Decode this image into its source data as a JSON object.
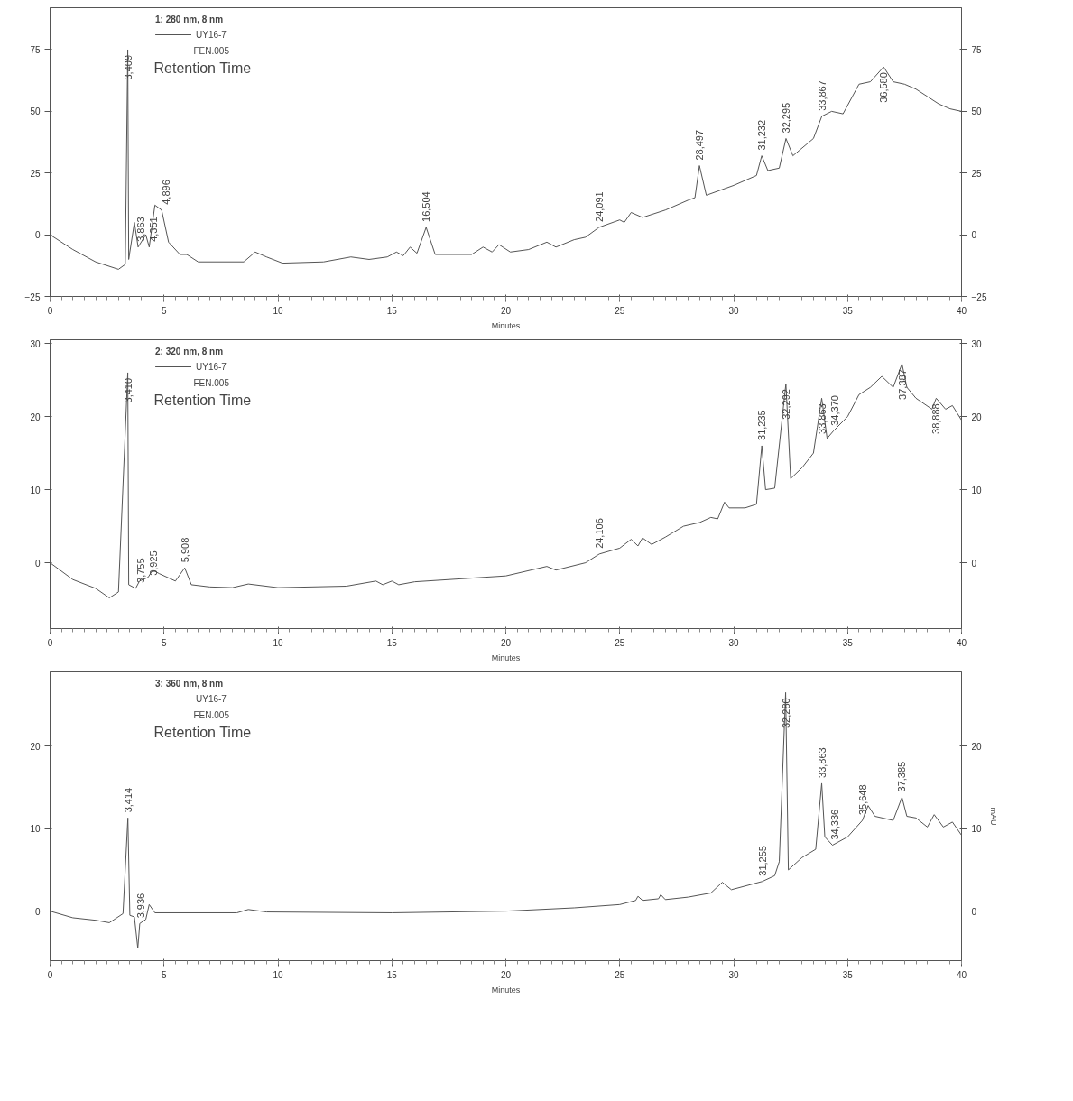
{
  "chart_data": [
    {
      "type": "line",
      "legend_title": "1: 280 nm, 8 nm",
      "xlabel": "Minutes",
      "legend": "top left",
      "grid": false,
      "marker": "none",
      "line_style": "solid",
      "xlim": [
        0,
        40
      ],
      "xticks": [
        0,
        5,
        10,
        15,
        20,
        25,
        30,
        35,
        40
      ],
      "ylim": [
        -25,
        92
      ],
      "yticks": [
        -25,
        0,
        25,
        50,
        75
      ],
      "y2lim": [
        -25,
        92
      ],
      "y2ticks": [
        -25,
        0,
        25,
        50,
        75
      ],
      "series": [
        {
          "name": "UY16-7",
          "color": "#555555",
          "x": [
            0,
            1,
            2,
            3,
            3.3,
            3.409,
            3.45,
            3.7,
            3.863,
            4.2,
            4.351,
            4.6,
            4.896,
            5.2,
            5.7,
            6.0,
            6.5,
            8.5,
            9.0,
            9.5,
            10.2,
            12,
            13.2,
            14,
            14.8,
            15.2,
            15.5,
            15.8,
            16.1,
            16.504,
            16.9,
            18.5,
            19,
            19.4,
            19.7,
            20.2,
            21,
            21.8,
            22.2,
            23,
            23.5,
            24.091,
            25,
            25.2,
            25.5,
            26,
            27,
            28,
            28.3,
            28.497,
            28.8,
            30,
            31,
            31.232,
            31.5,
            32,
            32.295,
            32.6,
            33.5,
            33.867,
            34.3,
            34.8,
            35.5,
            36,
            36.58,
            37,
            37.5,
            38,
            38.5,
            39,
            39.5,
            40
          ],
          "values": [
            0,
            -6,
            -11,
            -14,
            -12,
            75,
            -10,
            5,
            -5,
            0,
            -5,
            12,
            10,
            -3,
            -8,
            -8,
            -11,
            -11,
            -7,
            -9,
            -11.5,
            -11,
            -9,
            -10,
            -9,
            -7,
            -8.5,
            -5,
            -7.5,
            3,
            -8,
            -8,
            -5,
            -7,
            -4,
            -7,
            -6,
            -3,
            -5,
            -2,
            -1,
            3,
            6,
            5,
            9,
            7,
            10,
            14,
            15,
            28,
            16,
            20,
            24,
            32,
            26,
            27,
            39,
            32,
            39,
            48,
            50,
            49,
            61,
            62,
            68,
            62,
            61,
            59,
            56,
            53,
            51,
            50
          ]
        }
      ],
      "annotations": [
        "FEN.005",
        "Retention Time",
        {
          "text": "3,409",
          "x": 3.409,
          "y": 75
        },
        {
          "text": "3,863",
          "x": 3.863,
          "y": -5
        },
        {
          "text": "4,351",
          "x": 4.351,
          "y": -5
        },
        {
          "text": "4,896",
          "x": 4.896,
          "y": 10
        },
        {
          "text": "16,504",
          "x": 16.504,
          "y": 3
        },
        {
          "text": "24,091",
          "x": 24.091,
          "y": 3
        },
        {
          "text": "28,497",
          "x": 28.497,
          "y": 28
        },
        {
          "text": "31,232",
          "x": 31.232,
          "y": 32
        },
        {
          "text": "32,295",
          "x": 32.295,
          "y": 39
        },
        {
          "text": "33,867",
          "x": 33.867,
          "y": 48
        },
        {
          "text": "36,580",
          "x": 36.58,
          "y": 68
        }
      ]
    },
    {
      "type": "line",
      "legend_title": "2: 320 nm, 8 nm",
      "xlabel": "Minutes",
      "legend": "top left",
      "grid": false,
      "marker": "none",
      "line_style": "solid",
      "xlim": [
        0,
        40
      ],
      "xticks": [
        0,
        5,
        10,
        15,
        20,
        25,
        30,
        35,
        40
      ],
      "ylim": [
        -9,
        30.5
      ],
      "yticks": [
        0,
        10,
        20,
        30
      ],
      "y2lim": [
        -9,
        30.5
      ],
      "y2ticks": [
        0,
        10,
        20,
        30
      ],
      "series": [
        {
          "name": "UY16-7",
          "color": "#555555",
          "x": [
            0,
            1,
            2,
            2.6,
            3.0,
            3.41,
            3.45,
            3.755,
            3.925,
            4.3,
            4.5,
            4.8,
            5.5,
            5.908,
            6.2,
            7,
            8,
            8.7,
            10,
            13,
            14.3,
            14.6,
            15,
            15.3,
            16,
            20,
            21.8,
            22.2,
            23.5,
            24.106,
            25,
            25.5,
            25.8,
            26,
            26.4,
            27,
            27.8,
            28.5,
            29,
            29.3,
            29.6,
            29.8,
            30.5,
            31,
            31.235,
            31.4,
            31.8,
            32.292,
            32.5,
            33,
            33.5,
            33.863,
            34.1,
            34.37,
            35,
            35.5,
            36,
            36.5,
            37,
            37.387,
            37.6,
            38,
            38.7,
            38.888,
            39.3,
            39.6,
            40
          ],
          "values": [
            0,
            -2.3,
            -3.5,
            -4.8,
            -4,
            26,
            -3,
            -3.5,
            -2.5,
            -2,
            -1,
            -1.5,
            -2.5,
            -0.7,
            -3,
            -3.3,
            -3.4,
            -2.9,
            -3.4,
            -3.2,
            -2.5,
            -3,
            -2.5,
            -3,
            -2.6,
            -1.8,
            -0.5,
            -1,
            0,
            1.2,
            2,
            3.2,
            2.3,
            3.4,
            2.5,
            3.5,
            5,
            5.5,
            6.2,
            6,
            8.3,
            7.5,
            7.5,
            8,
            16,
            10,
            10.2,
            24.5,
            11.5,
            13,
            15,
            22.5,
            17,
            18,
            20,
            23,
            24,
            25.5,
            24,
            27.2,
            24,
            22.5,
            21,
            22.5,
            21,
            21.5,
            19.5
          ]
        }
      ],
      "annotations": [
        "FEN.005",
        "Retention Time",
        {
          "text": "3,410",
          "x": 3.41,
          "y": 26
        },
        {
          "text": "3,755",
          "x": 3.755,
          "y": -3.5
        },
        {
          "text": "3,925",
          "x": 3.925,
          "y": -2.5
        },
        {
          "text": "5,908",
          "x": 5.908,
          "y": -0.7
        },
        {
          "text": "24,106",
          "x": 24.106,
          "y": 1.2
        },
        {
          "text": "31,235",
          "x": 31.235,
          "y": 16
        },
        {
          "text": "32,292",
          "x": 32.292,
          "y": 24.5
        },
        {
          "text": "33,863",
          "x": 33.863,
          "y": 22.5
        },
        {
          "text": "34,370",
          "x": 34.37,
          "y": 18
        },
        {
          "text": "37,387",
          "x": 37.387,
          "y": 27.2
        },
        {
          "text": "38,888",
          "x": 38.888,
          "y": 22.5
        }
      ]
    },
    {
      "type": "line",
      "legend_title": "3: 360 nm, 8 nm",
      "xlabel": "Minutes",
      "y2label": "mAU",
      "legend": "top left",
      "grid": false,
      "marker": "none",
      "line_style": "solid",
      "xlim": [
        0,
        40
      ],
      "xticks": [
        0,
        5,
        10,
        15,
        20,
        25,
        30,
        35,
        40
      ],
      "ylim": [
        -6,
        29
      ],
      "yticks": [
        0,
        10,
        20
      ],
      "y2lim": [
        -6,
        29
      ],
      "y2ticks": [
        0,
        10,
        20
      ],
      "series": [
        {
          "name": "UY16-7",
          "color": "#555555",
          "x": [
            0,
            1,
            2,
            2.6,
            3.2,
            3.414,
            3.5,
            3.7,
            3.85,
            3.936,
            4.2,
            4.35,
            4.6,
            8.2,
            8.7,
            9.5,
            15,
            20,
            23,
            25,
            25.7,
            25.8,
            26,
            26.7,
            26.8,
            27,
            28,
            29,
            29.5,
            29.9,
            31.255,
            31.8,
            32.0,
            32.28,
            32.4,
            33,
            33.6,
            33.863,
            34,
            34.336,
            35,
            35.648,
            35.9,
            36.2,
            37,
            37.385,
            37.6,
            38,
            38.5,
            38.8,
            39.2,
            39.6,
            40
          ],
          "values": [
            0,
            -0.8,
            -1.1,
            -1.4,
            -0.3,
            11.3,
            -0.5,
            -0.7,
            -4.5,
            -1.5,
            -1,
            0.8,
            -0.2,
            -0.2,
            0.2,
            -0.1,
            -0.2,
            0,
            0.4,
            0.8,
            1.3,
            1.8,
            1.3,
            1.5,
            2.0,
            1.4,
            1.7,
            2.2,
            3.5,
            2.6,
            3.6,
            4.3,
            6,
            26.5,
            5,
            6.5,
            7.5,
            15.5,
            9,
            8,
            9,
            11,
            12.8,
            11.5,
            11,
            13.8,
            11.5,
            11.3,
            10.2,
            11.7,
            10.2,
            10.8,
            9.2
          ]
        }
      ],
      "annotations": [
        "FEN.005",
        "Retention Time",
        {
          "text": "3,414",
          "x": 3.414,
          "y": 11.3
        },
        {
          "text": "3,936",
          "x": 3.936,
          "y": -1.5
        },
        {
          "text": "31,255",
          "x": 31.255,
          "y": 3.6
        },
        {
          "text": "32,280",
          "x": 32.28,
          "y": 26.5
        },
        {
          "text": "33,863",
          "x": 33.863,
          "y": 15.5
        },
        {
          "text": "34,336",
          "x": 34.336,
          "y": 8
        },
        {
          "text": "35,648",
          "x": 35.648,
          "y": 11
        },
        {
          "text": "37,385",
          "x": 37.385,
          "y": 13.8
        }
      ]
    }
  ]
}
